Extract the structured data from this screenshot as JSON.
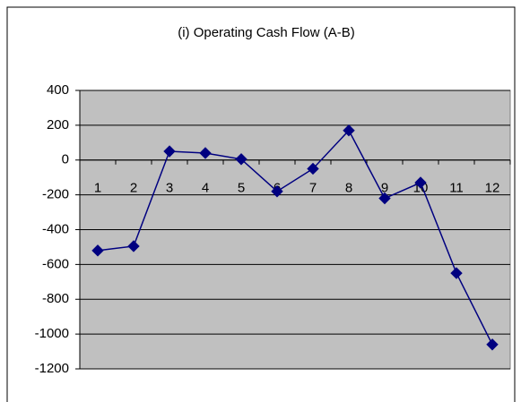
{
  "chart_data": {
    "type": "line",
    "title": "(i) Operating Cash Flow (A-B)",
    "categories": [
      "1",
      "2",
      "3",
      "4",
      "5",
      "6",
      "7",
      "8",
      "9",
      "10",
      "11",
      "12"
    ],
    "series": [
      {
        "name": "Operating Cash Flow",
        "color": "#000080",
        "values": [
          -520,
          -495,
          50,
          40,
          5,
          -180,
          -50,
          170,
          -220,
          -130,
          -650,
          -1060
        ]
      }
    ],
    "ylim": [
      -1200,
      400
    ],
    "yticks": [
      -1200,
      -1000,
      -800,
      -600,
      -400,
      -200,
      0,
      200,
      400
    ],
    "grid": true,
    "plot_background": "#c0c0c0",
    "marker": "diamond"
  }
}
